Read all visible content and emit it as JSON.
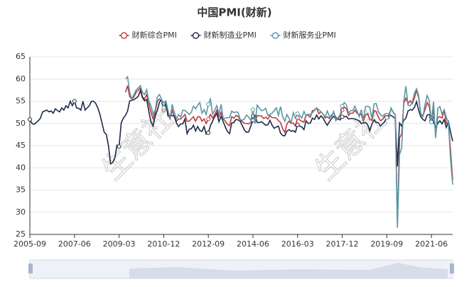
{
  "chart_data": {
    "type": "line",
    "title": "中国PMI(财新)",
    "watermark": "生意社",
    "categories": [
      "2005-09",
      null,
      null,
      null,
      null,
      null,
      null,
      null,
      null,
      null,
      null,
      null,
      null,
      null,
      null,
      null,
      null,
      null,
      null,
      null,
      null,
      "2007-06",
      null,
      null,
      null,
      null,
      null,
      null,
      null,
      null,
      null,
      null,
      null,
      null,
      null,
      null,
      null,
      null,
      null,
      null,
      null,
      null,
      "2009-03",
      null,
      null,
      null,
      null,
      null,
      null,
      null,
      null,
      null,
      null,
      null,
      null,
      null,
      null,
      null,
      null,
      null,
      null,
      null,
      null,
      "2010-12",
      null,
      null,
      null,
      null,
      null,
      null,
      null,
      null,
      null,
      null,
      null,
      null,
      null,
      null,
      null,
      null,
      null,
      null,
      null,
      null,
      "2012-09",
      null,
      null,
      null,
      null,
      null,
      null,
      null,
      null,
      null,
      null,
      null,
      null,
      null,
      null,
      null,
      null,
      null,
      null,
      null,
      null,
      "2014-06",
      null,
      null,
      null,
      null,
      null,
      null,
      null,
      null,
      null,
      null,
      null,
      null,
      null,
      null,
      null,
      null,
      null,
      null,
      null,
      null,
      "2016-03",
      null,
      null,
      null,
      null,
      null,
      null,
      null,
      null,
      null,
      null,
      null,
      null,
      null,
      null,
      null,
      null,
      null,
      null,
      null,
      null,
      "2017-12",
      null,
      null,
      null,
      null,
      null,
      null,
      null,
      null,
      null,
      null,
      null,
      null,
      null,
      null,
      null,
      null,
      null,
      null,
      null,
      null,
      "2019-09",
      null,
      null,
      null,
      null,
      null,
      null,
      null,
      null,
      null,
      null,
      null,
      null,
      null,
      null,
      null,
      null,
      null,
      null,
      null,
      null,
      "2021-06",
      null,
      null,
      null,
      null,
      null,
      null,
      null,
      null,
      null,
      null
    ],
    "series": [
      {
        "name": "财新综合PMI",
        "color": "#c0393b",
        "values": [
          null,
          null,
          null,
          null,
          null,
          null,
          null,
          null,
          null,
          null,
          null,
          null,
          null,
          null,
          null,
          null,
          null,
          null,
          null,
          null,
          null,
          null,
          null,
          null,
          null,
          null,
          null,
          null,
          null,
          null,
          null,
          null,
          null,
          null,
          null,
          null,
          null,
          null,
          null,
          null,
          null,
          null,
          null,
          null,
          null,
          57.0,
          58.5,
          56.0,
          55.5,
          56.0,
          57.0,
          57.5,
          58.0,
          56.0,
          55.5,
          56.5,
          54.5,
          52.5,
          51.0,
          52.5,
          55.0,
          55.5,
          55.0,
          53.0,
          54.5,
          52.0,
          51.0,
          53.0,
          51.5,
          50.5,
          51.0,
          51.0,
          51.5,
          52.0,
          50.5,
          50.5,
          51.0,
          51.5,
          50.5,
          51.5,
          51.5,
          50.5,
          51.0,
          50.0,
          51.0,
          52.0,
          51.2,
          52.0,
          53.0,
          51.5,
          52.5,
          51.0,
          50.5,
          49.8,
          49.5,
          51.5,
          51.2,
          51.8,
          51.6,
          50.8,
          50.4,
          50.0,
          50.0,
          49.9,
          50.2,
          51.7,
          50.3,
          51.8,
          51.7,
          51.7,
          51.1,
          51.4,
          51.0,
          51.8,
          51.3,
          51.3,
          51.2,
          50.6,
          50.2,
          48.8,
          48.0,
          49.9,
          50.5,
          50.0,
          50.1,
          49.4,
          51.3,
          50.8,
          50.5,
          50.3,
          51.9,
          51.8,
          51.4,
          52.9,
          52.9,
          53.5,
          52.2,
          52.6,
          52.1,
          51.2,
          51.5,
          51.1,
          51.9,
          52.4,
          51.4,
          51.0,
          51.6,
          53.0,
          53.7,
          53.3,
          51.8,
          52.3,
          52.3,
          53.0,
          52.3,
          52.0,
          52.1,
          50.5,
          51.9,
          52.2,
          50.9,
          50.7,
          52.9,
          52.7,
          51.5,
          50.6,
          50.9,
          51.6,
          51.9,
          52.0,
          53.2,
          52.6,
          51.9,
          27.5,
          46.7,
          47.6,
          54.5,
          55.7,
          54.5,
          55.1,
          54.5,
          55.7,
          57.5,
          55.8,
          52.2,
          51.7,
          53.1,
          54.7,
          53.8,
          50.6,
          53.1,
          47.2,
          51.4,
          51.5,
          51.2,
          53.0,
          50.1,
          50.1,
          43.9,
          37.2
        ]
      },
      {
        "name": "财新制造业PMI",
        "color": "#1c2a48",
        "values": [
          50.9,
          50.0,
          49.8,
          50.2,
          50.6,
          51.2,
          52.6,
          52.8,
          53.0,
          52.6,
          52.8,
          52.3,
          53.3,
          52.9,
          52.6,
          53.5,
          53.0,
          54.0,
          53.5,
          55.0,
          54.0,
          55.0,
          53.5,
          53.4,
          53.0,
          55.0,
          53.0,
          53.5,
          54.0,
          55.0,
          55.0,
          54.5,
          53.5,
          52.0,
          50.0,
          48.0,
          47.5,
          45.0,
          40.9,
          41.2,
          42.2,
          45.1,
          44.8,
          50.1,
          51.2,
          51.8,
          52.8,
          55.1,
          55.2,
          55.4,
          55.7,
          56.1,
          57.4,
          55.8,
          55.1,
          55.4,
          52.7,
          50.4,
          49.4,
          51.7,
          52.9,
          54.8,
          55.3,
          54.4,
          54.5,
          51.7,
          51.8,
          51.8,
          51.6,
          50.1,
          49.3,
          49.9,
          49.9,
          51.0,
          47.7,
          48.7,
          48.8,
          49.6,
          48.3,
          49.3,
          48.4,
          48.2,
          49.3,
          47.6,
          47.9,
          49.5,
          50.5,
          51.5,
          52.3,
          50.4,
          51.6,
          50.4,
          49.2,
          48.2,
          47.7,
          50.1,
          50.2,
          50.9,
          50.8,
          50.5,
          49.5,
          48.5,
          48.0,
          48.1,
          49.4,
          50.7,
          51.7,
          50.2,
          50.2,
          50.4,
          50.0,
          49.6,
          49.7,
          50.7,
          49.6,
          48.9,
          49.2,
          49.4,
          47.8,
          47.3,
          47.2,
          48.3,
          48.6,
          48.2,
          48.4,
          48.0,
          49.7,
          49.4,
          49.2,
          48.6,
          50.6,
          50.0,
          50.1,
          51.2,
          50.9,
          51.9,
          51.0,
          51.7,
          51.2,
          50.3,
          49.6,
          50.4,
          51.1,
          51.6,
          51.0,
          51.0,
          50.8,
          51.5,
          51.5,
          51.6,
          51.0,
          51.1,
          51.1,
          51.0,
          50.8,
          50.6,
          50.0,
          50.1,
          50.2,
          49.7,
          48.3,
          49.9,
          50.8,
          50.2,
          50.2,
          49.4,
          49.9,
          50.4,
          51.4,
          51.7,
          51.8,
          51.5,
          51.1,
          40.3,
          50.1,
          49.4,
          50.7,
          51.2,
          52.8,
          53.1,
          53.0,
          53.6,
          54.9,
          53.0,
          51.5,
          50.9,
          50.6,
          51.9,
          52.0,
          51.3,
          50.3,
          49.2,
          50.0,
          50.6,
          49.9,
          50.9,
          49.1,
          50.4,
          48.1,
          46.0
        ]
      },
      {
        "name": "财新服务业PMI",
        "color": "#5a97a8",
        "values": [
          null,
          null,
          null,
          null,
          null,
          null,
          null,
          null,
          null,
          null,
          null,
          null,
          null,
          null,
          null,
          null,
          null,
          null,
          null,
          null,
          null,
          null,
          null,
          null,
          null,
          null,
          null,
          null,
          null,
          null,
          null,
          null,
          null,
          null,
          null,
          null,
          null,
          null,
          null,
          null,
          null,
          null,
          null,
          null,
          null,
          60.0,
          60.5,
          57.0,
          55.5,
          56.5,
          57.5,
          58.0,
          58.5,
          57.0,
          56.5,
          57.6,
          55.0,
          54.0,
          52.0,
          53.0,
          56.0,
          56.5,
          55.5,
          53.5,
          55.2,
          53.0,
          51.0,
          54.3,
          52.5,
          51.0,
          52.0,
          51.5,
          53.0,
          52.9,
          52.5,
          52.0,
          52.5,
          53.9,
          53.3,
          54.1,
          54.7,
          52.3,
          53.1,
          52.0,
          54.3,
          55.5,
          52.1,
          53.0,
          54.0,
          52.1,
          54.3,
          51.1,
          51.2,
          51.3,
          51.3,
          52.8,
          52.4,
          52.6,
          52.5,
          50.9,
          50.7,
          51.0,
          51.9,
          51.4,
          50.7,
          53.1,
          50.0,
          54.1,
          53.5,
          52.9,
          53.0,
          53.4,
          51.8,
          52.0,
          52.3,
          52.9,
          53.5,
          51.8,
          53.8,
          51.5,
          50.5,
          52.0,
          51.2,
          50.2,
          52.4,
          51.2,
          52.2,
          51.8,
          51.2,
          52.7,
          51.7,
          52.1,
          52.0,
          52.4,
          53.1,
          53.4,
          53.1,
          52.6,
          52.1,
          51.5,
          52.8,
          51.6,
          51.5,
          52.7,
          50.6,
          51.2,
          51.9,
          53.9,
          54.7,
          54.2,
          52.3,
          52.9,
          52.9,
          53.9,
          52.8,
          51.5,
          53.1,
          50.8,
          53.8,
          53.9,
          53.6,
          51.1,
          54.4,
          54.5,
          52.7,
          52.0,
          51.6,
          52.1,
          51.3,
          51.1,
          53.5,
          52.5,
          51.8,
          26.5,
          43.0,
          44.4,
          55.0,
          58.4,
          54.1,
          54.0,
          54.8,
          56.8,
          57.8,
          56.3,
          52.0,
          51.5,
          54.3,
          56.3,
          55.1,
          50.3,
          54.9,
          46.7,
          53.4,
          53.8,
          52.1,
          53.1,
          51.4,
          50.2,
          42.0,
          36.2
        ]
      }
    ],
    "ylim": [
      25,
      65
    ],
    "yticks": [
      25,
      30,
      35,
      40,
      45,
      50,
      55,
      60,
      65
    ],
    "grid": true,
    "legend": "top"
  }
}
